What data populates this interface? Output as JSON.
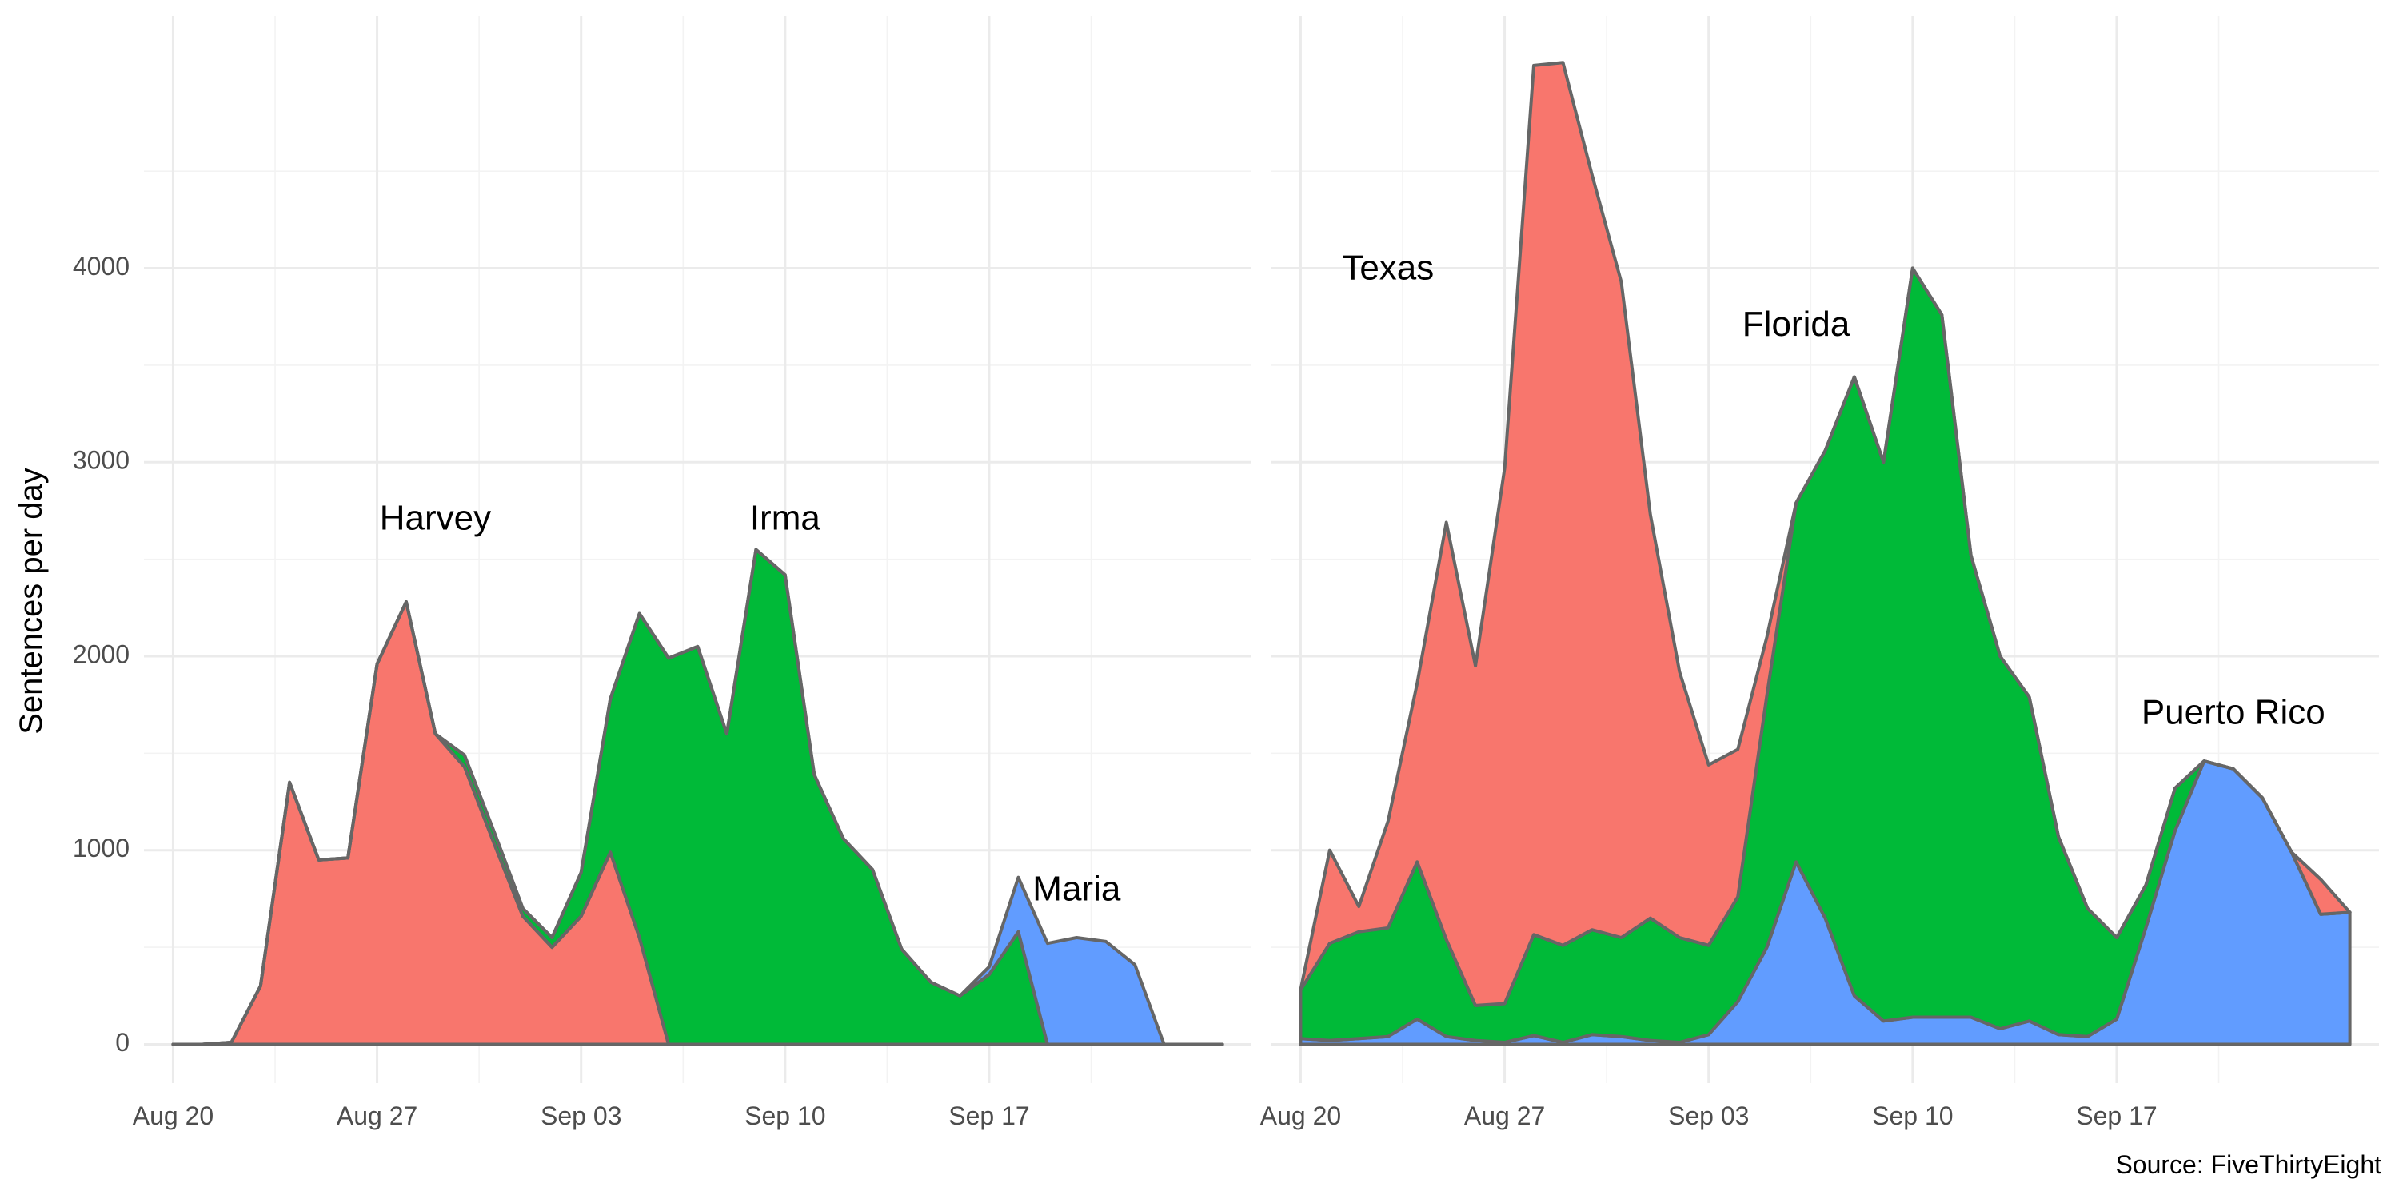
{
  "chart_data": {
    "type": "area",
    "stacked": true,
    "ylabel": "Sentences per day",
    "caption": "Source: FiveThirtyEight",
    "grid": true,
    "legend": "none",
    "x_dates": [
      "2017-08-20",
      "2017-08-21",
      "2017-08-22",
      "2017-08-23",
      "2017-08-24",
      "2017-08-25",
      "2017-08-26",
      "2017-08-27",
      "2017-08-28",
      "2017-08-29",
      "2017-08-30",
      "2017-08-31",
      "2017-09-01",
      "2017-09-02",
      "2017-09-03",
      "2017-09-04",
      "2017-09-05",
      "2017-09-06",
      "2017-09-07",
      "2017-09-08",
      "2017-09-09",
      "2017-09-10",
      "2017-09-11",
      "2017-09-12",
      "2017-09-13",
      "2017-09-14",
      "2017-09-15",
      "2017-09-16",
      "2017-09-17",
      "2017-09-18",
      "2017-09-19",
      "2017-09-20",
      "2017-09-21",
      "2017-09-22",
      "2017-09-23",
      "2017-09-24",
      "2017-09-25"
    ],
    "x_tick_labels": [
      "Aug 20",
      "Aug 27",
      "Sep 03",
      "Sep 10",
      "Sep 17"
    ],
    "x_tick_dates": [
      "2017-08-20",
      "2017-08-27",
      "2017-09-03",
      "2017-09-10",
      "2017-09-17"
    ],
    "xlim": [
      "2017-08-19",
      "2017-09-26"
    ],
    "ylim": [
      -200,
      5300
    ],
    "y_ticks": [
      0,
      1000,
      2000,
      3000,
      4000
    ],
    "y_tick_labels": [
      "0",
      "1000",
      "2000",
      "3000",
      "4000"
    ],
    "colors": {
      "red": "#F8766D",
      "green": "#00BA38",
      "blue": "#619CFF"
    },
    "panels": [
      {
        "series": [
          {
            "color": "red",
            "values": [
              0,
              0,
              10,
              300,
              1350,
              950,
              960,
              1960,
              2280,
              1600,
              1430,
              1040,
              660,
              500,
              660,
              990,
              550,
              0,
              0,
              0,
              0,
              0,
              0,
              0,
              0,
              0,
              0,
              0,
              0,
              0,
              0,
              0,
              0,
              0,
              0,
              0,
              0
            ]
          },
          {
            "color": "green",
            "values": [
              0,
              0,
              0,
              0,
              0,
              0,
              0,
              0,
              0,
              0,
              60,
              60,
              40,
              50,
              225,
              790,
              1670,
              1990,
              2050,
              1600,
              2550,
              2420,
              1390,
              1060,
              900,
              490,
              320,
              250,
              360,
              580,
              0,
              0,
              0,
              0,
              0,
              0,
              0
            ]
          },
          {
            "color": "blue",
            "values": [
              0,
              0,
              0,
              0,
              0,
              0,
              0,
              0,
              0,
              0,
              0,
              0,
              0,
              0,
              0,
              0,
              0,
              0,
              0,
              0,
              0,
              0,
              0,
              0,
              0,
              0,
              0,
              0,
              40,
              280,
              520,
              550,
              530,
              410,
              0,
              0,
              0
            ]
          }
        ],
        "annotations": [
          {
            "text": "Harvey",
            "x": "2017-08-29",
            "y": 2700
          },
          {
            "text": "Irma",
            "x": "2017-09-10",
            "y": 2700
          },
          {
            "text": "Maria",
            "x": "2017-09-20",
            "y": 790
          }
        ]
      },
      {
        "series": [
          {
            "color": "blue",
            "values": [
              30,
              20,
              30,
              40,
              130,
              40,
              20,
              10,
              45,
              10,
              50,
              40,
              20,
              10,
              50,
              220,
              500,
              940,
              650,
              250,
              120,
              140,
              140,
              140,
              80,
              120,
              50,
              40,
              130,
              600,
              1100,
              1460,
              1420,
              1270,
              990,
              670,
              680
            ]
          },
          {
            "color": "green",
            "values": [
              250,
              500,
              550,
              560,
              810,
              500,
              180,
              200,
              520,
              500,
              540,
              510,
              630,
              540,
              460,
              540,
              1300,
              1850,
              2410,
              3190,
              2880,
              3860,
              3620,
              2380,
              1920,
              1670,
              1020,
              660,
              420,
              220,
              220,
              0,
              0,
              0,
              0,
              0,
              0
            ]
          },
          {
            "color": "red",
            "values": [
              0,
              480,
              130,
              550,
              920,
              2150,
              1750,
              2760,
              4480,
              4550,
              3890,
              3380,
              2080,
              1370,
              930,
              760,
              300,
              0,
              0,
              0,
              0,
              0,
              0,
              0,
              0,
              0,
              0,
              0,
              0,
              0,
              0,
              0,
              0,
              0,
              0,
              180,
              0
            ]
          }
        ],
        "annotations": [
          {
            "text": "Texas",
            "x": "2017-08-23",
            "y": 3990
          },
          {
            "text": "Florida",
            "x": "2017-09-06",
            "y": 3700
          },
          {
            "text": "Puerto Rico",
            "x": "2017-09-21",
            "y": 1700
          }
        ]
      }
    ]
  }
}
